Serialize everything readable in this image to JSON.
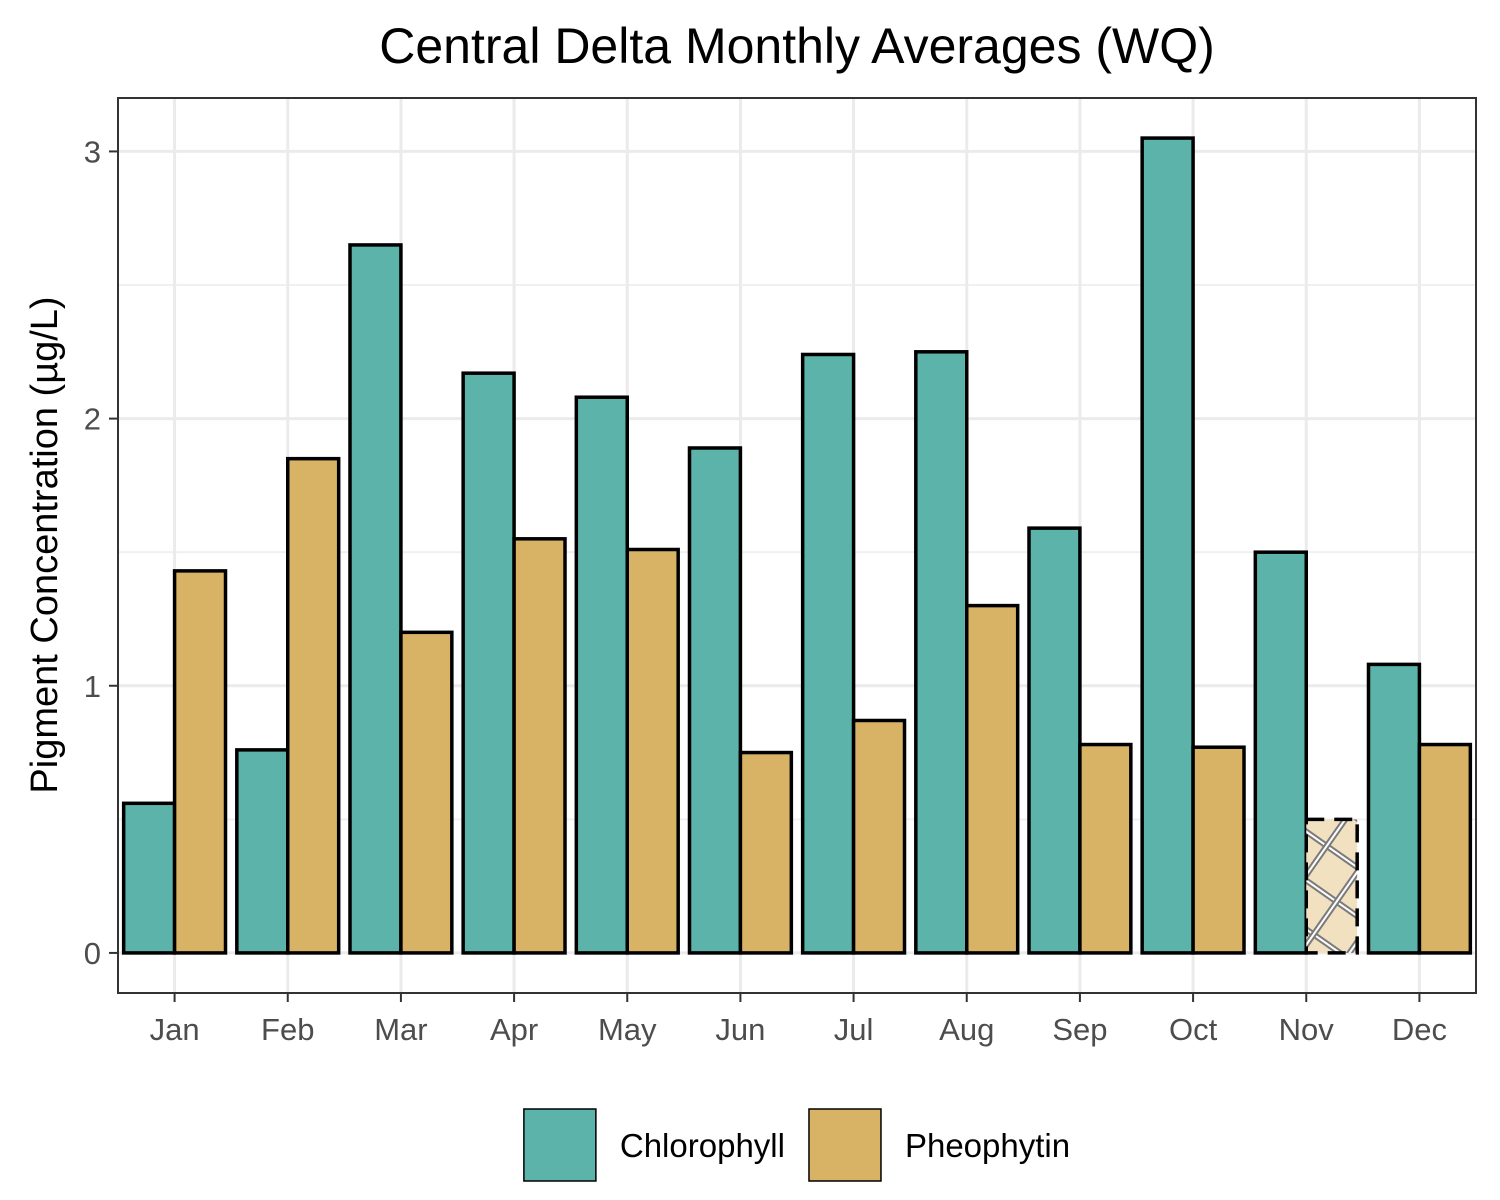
{
  "chart_data": {
    "type": "bar",
    "title": "Central Delta Monthly Averages (WQ)",
    "xlabel": "",
    "ylabel": "Pigment Concentration (µg/L)",
    "categories": [
      "Jan",
      "Feb",
      "Mar",
      "Apr",
      "May",
      "Jun",
      "Jul",
      "Aug",
      "Sep",
      "Oct",
      "Nov",
      "Dec"
    ],
    "series": [
      {
        "name": "Chlorophyll",
        "color": "#5bb3a9",
        "values": [
          0.56,
          0.76,
          2.65,
          2.17,
          2.08,
          1.89,
          2.24,
          2.25,
          1.59,
          3.05,
          1.5,
          1.08
        ]
      },
      {
        "name": "Pheophytin",
        "color": "#d8b365",
        "values": [
          1.43,
          1.85,
          1.2,
          1.55,
          1.51,
          0.75,
          0.87,
          1.3,
          0.78,
          0.77,
          0.5,
          0.78
        ],
        "hatched": [
          false,
          false,
          false,
          false,
          false,
          false,
          false,
          false,
          false,
          false,
          true,
          false
        ]
      }
    ],
    "ylim": [
      -0.15,
      3.2
    ],
    "yticks": [
      0,
      1,
      2,
      3
    ],
    "grid": true,
    "legend": "bottom"
  }
}
